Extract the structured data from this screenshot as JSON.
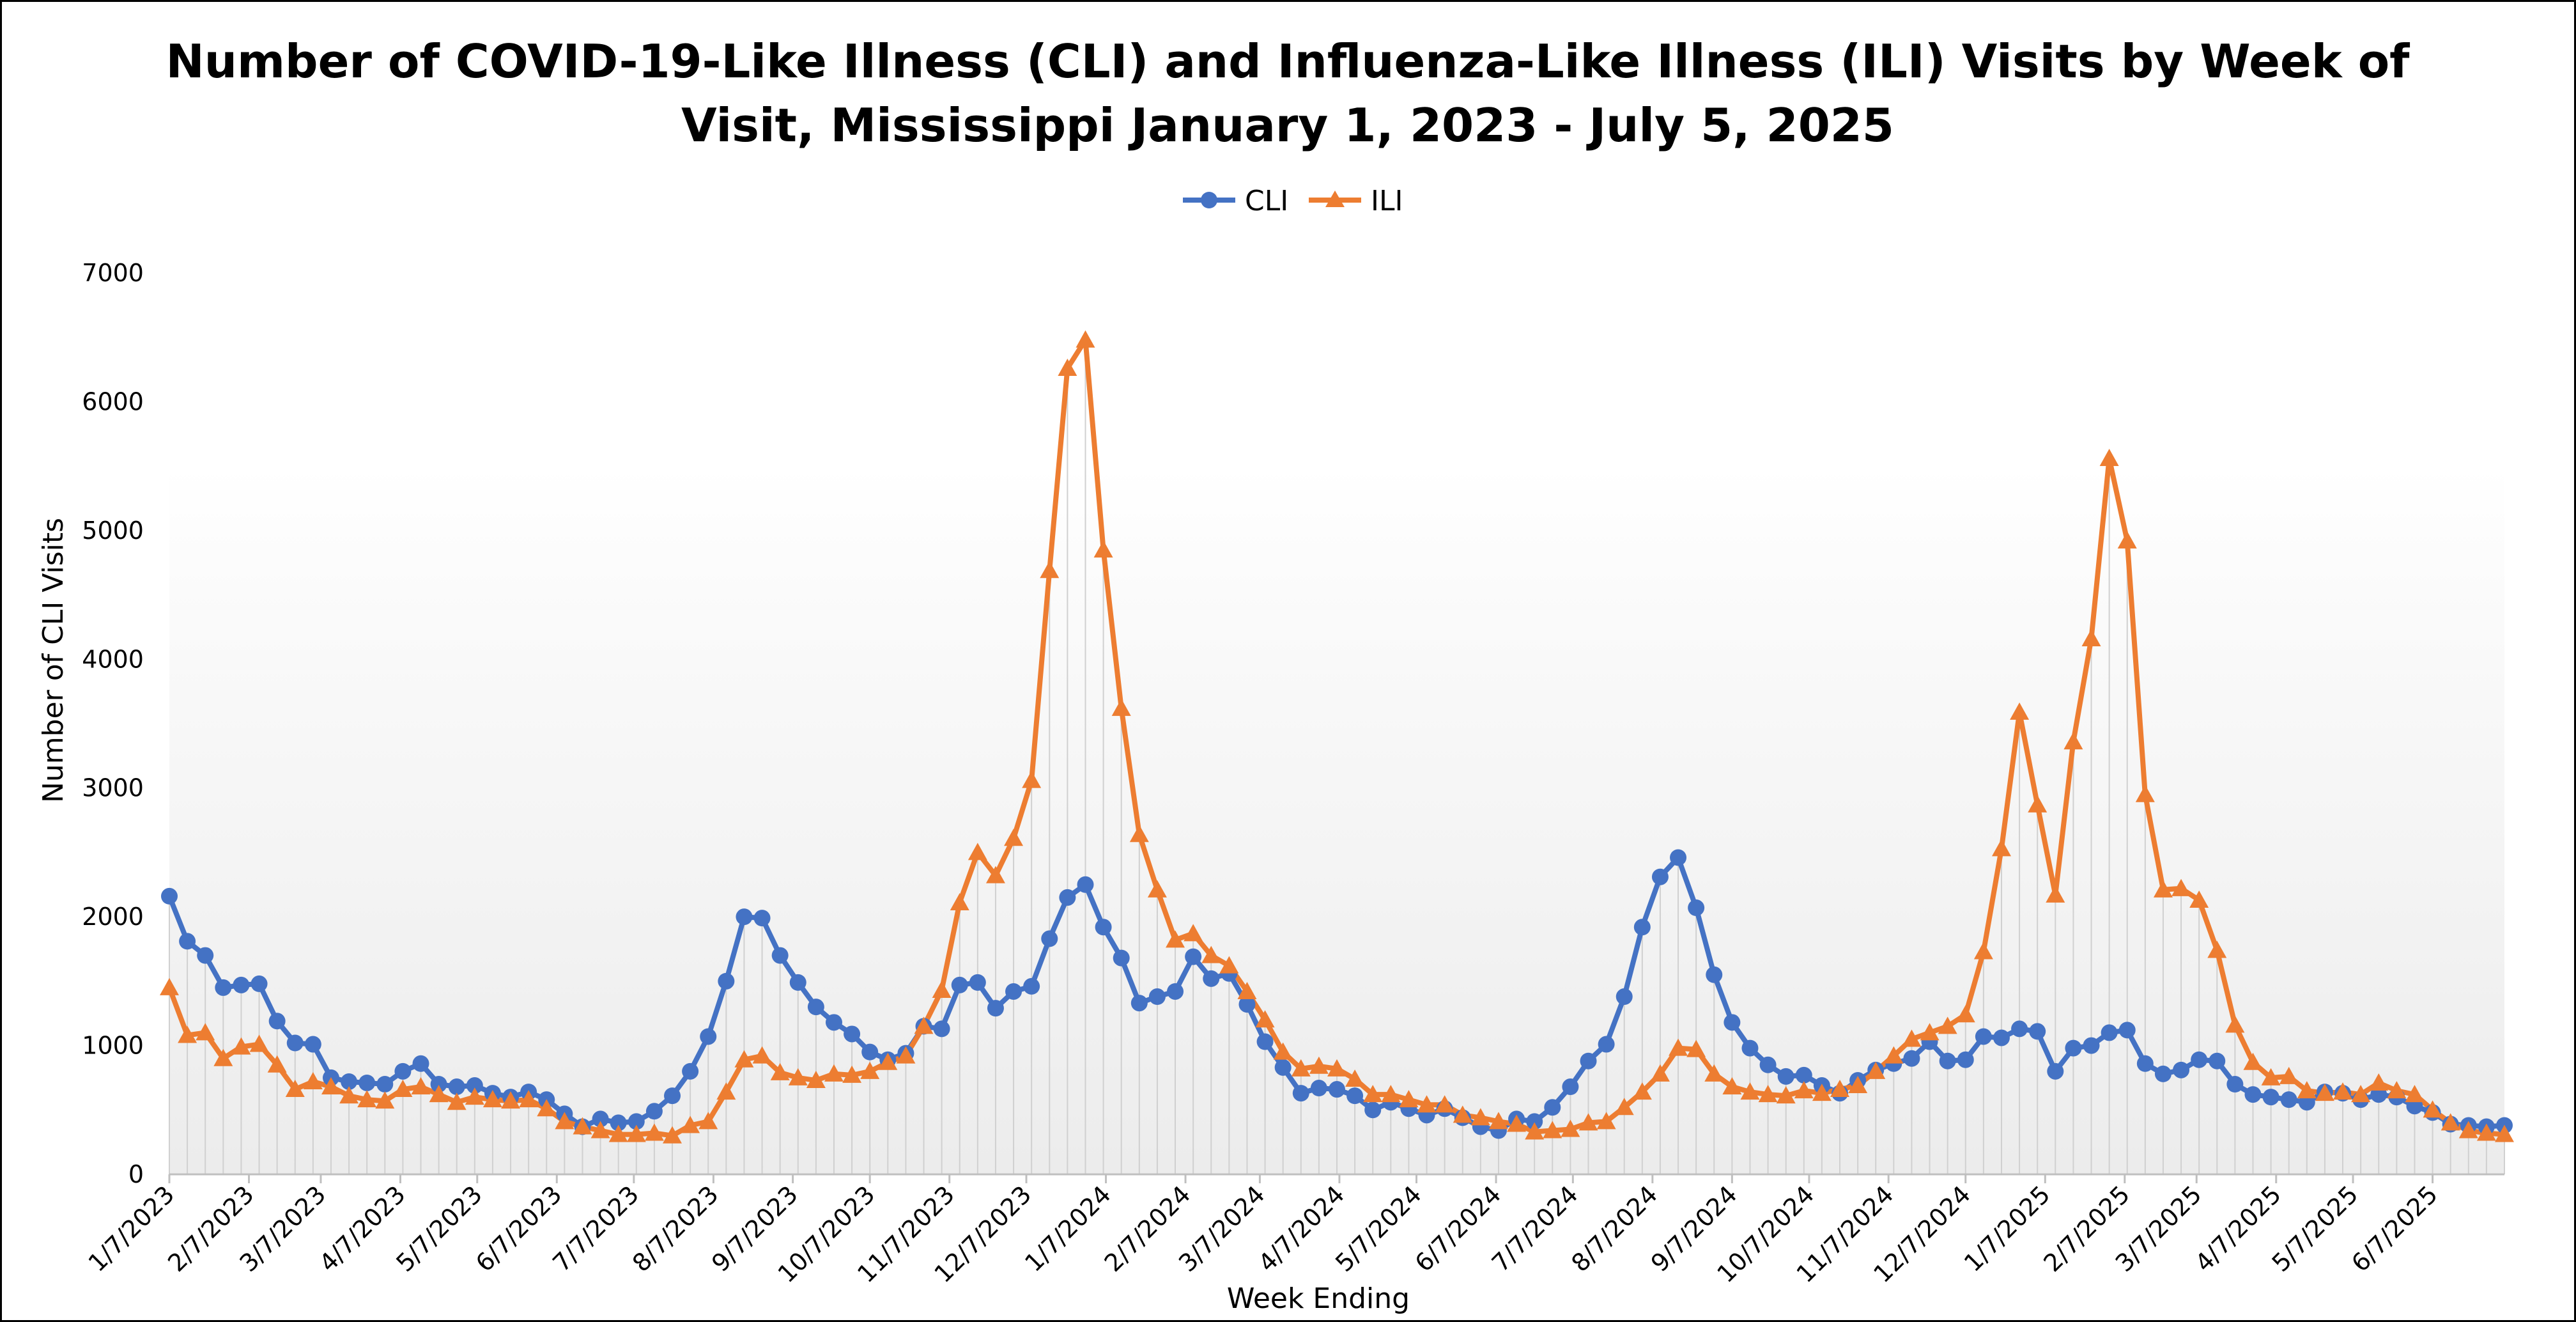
{
  "chart_data": {
    "type": "line",
    "title": "Number of COVID-19-Like Illness (CLI) and Influenza-Like Illness (ILI) Visits by Week of Visit, Mississippi January 1, 2023 - July 5, 2025",
    "title_lines": [
      "Number of COVID-19-Like Illness (CLI) and Influenza-Like Illness (ILI) Visits by Week of",
      "Visit, Mississippi January 1, 2023 - July 5, 2025"
    ],
    "xlabel": "Week Ending",
    "ylabel": "Number of CLI Visits",
    "ylim": [
      0,
      7000
    ],
    "yticks": [
      0,
      1000,
      2000,
      3000,
      4000,
      5000,
      6000,
      7000
    ],
    "legend_position": "top-center",
    "x_tick_labels": [
      "1/7/2023",
      "2/7/2023",
      "3/7/2023",
      "4/7/2023",
      "5/7/2023",
      "6/7/2023",
      "7/7/2023",
      "8/7/2023",
      "9/7/2023",
      "10/7/2023",
      "11/7/2023",
      "12/7/2023",
      "1/7/2024",
      "2/7/2024",
      "3/7/2024",
      "4/7/2024",
      "5/7/2024",
      "6/7/2024",
      "7/7/2024",
      "8/7/2024",
      "9/7/2024",
      "10/7/2024",
      "11/7/2024",
      "12/7/2024",
      "1/7/2025",
      "2/7/2025",
      "3/7/2025",
      "4/7/2025",
      "5/7/2025",
      "6/7/2025"
    ],
    "x_tick_weeks": [
      0,
      4.43,
      8.43,
      12.86,
      17.14,
      21.57,
      25.86,
      30.29,
      34.71,
      39,
      43.43,
      47.71,
      52.14,
      56.57,
      60.71,
      65.14,
      69.43,
      73.86,
      78.14,
      82.57,
      87,
      91.29,
      95.71,
      100,
      104.43,
      108.86,
      112.86,
      117.29,
      121.57,
      126
    ],
    "series": [
      {
        "name": "CLI",
        "color": "#4472C4",
        "marker": "circle",
        "values": [
          2160,
          1810,
          1700,
          1450,
          1470,
          1480,
          1190,
          1020,
          1010,
          750,
          720,
          710,
          700,
          800,
          860,
          700,
          680,
          690,
          630,
          600,
          640,
          580,
          470,
          370,
          430,
          400,
          410,
          490,
          610,
          800,
          1070,
          1500,
          2000,
          1990,
          1700,
          1490,
          1300,
          1180,
          1090,
          950,
          890,
          940,
          1150,
          1130,
          1470,
          1490,
          1290,
          1420,
          1460,
          1830,
          2150,
          2250,
          1920,
          1680,
          1330,
          1380,
          1420,
          1690,
          1520,
          1560,
          1320,
          1030,
          830,
          630,
          670,
          660,
          610,
          500,
          560,
          510,
          460,
          510,
          440,
          370,
          340,
          430,
          410,
          520,
          680,
          880,
          1010,
          1380,
          1920,
          2310,
          2460,
          2070,
          1550,
          1180,
          980,
          850,
          760,
          770,
          690,
          630,
          730,
          810,
          860,
          900,
          1030,
          880,
          890,
          1070,
          1060,
          1130,
          1110,
          800,
          980,
          1000,
          1100,
          1120,
          860,
          780,
          810,
          890,
          880,
          700,
          620,
          600,
          580,
          560,
          640,
          630,
          580,
          620,
          600,
          530,
          480,
          390,
          380,
          370,
          380
        ]
      },
      {
        "name": "ILI",
        "color": "#ED7D31",
        "marker": "triangle",
        "values": [
          1450,
          1080,
          1100,
          900,
          990,
          1010,
          850,
          660,
          720,
          680,
          610,
          580,
          570,
          660,
          680,
          620,
          560,
          600,
          580,
          570,
          580,
          510,
          410,
          370,
          340,
          310,
          310,
          320,
          300,
          380,
          410,
          640,
          890,
          920,
          790,
          750,
          730,
          780,
          770,
          800,
          870,
          920,
          1150,
          1430,
          2110,
          2500,
          2320,
          2610,
          3060,
          4690,
          6260,
          6480,
          4850,
          3620,
          2640,
          2210,
          1820,
          1870,
          1700,
          1620,
          1420,
          1200,
          950,
          820,
          840,
          820,
          740,
          620,
          620,
          580,
          540,
          540,
          460,
          440,
          410,
          390,
          330,
          340,
          350,
          400,
          410,
          520,
          640,
          780,
          980,
          970,
          780,
          680,
          640,
          620,
          610,
          650,
          630,
          660,
          690,
          800,
          920,
          1050,
          1100,
          1150,
          1240,
          1730,
          2530,
          3590,
          2870,
          2170,
          3360,
          4160,
          5560,
          4920,
          2950,
          2210,
          2220,
          2130,
          1740,
          1160,
          870,
          750,
          760,
          650,
          630,
          640,
          620,
          710,
          650,
          620,
          500,
          400,
          340,
          320,
          310
        ]
      }
    ]
  }
}
